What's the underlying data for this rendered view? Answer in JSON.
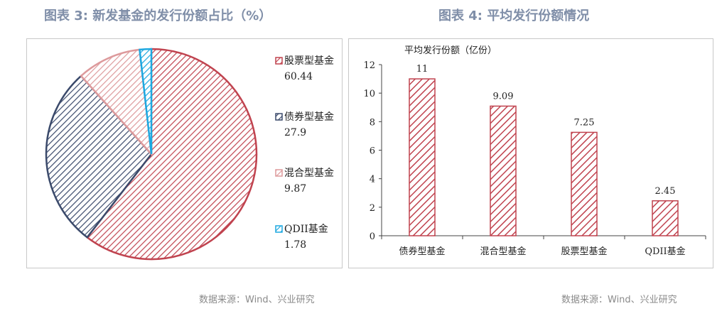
{
  "left": {
    "title": "图表 3:  新发基金的发行份额占比（%）",
    "source": "数据来源：Wind、兴业研究",
    "chart_data": {
      "type": "pie",
      "slices": [
        {
          "label": "股票型基金,60.44",
          "value": 60.44,
          "color": "#c0434f"
        },
        {
          "label": "债券型基金,27.9",
          "value": 27.9,
          "color": "#3b4a6b"
        },
        {
          "label": "混合型基金,9.87",
          "value": 9.87,
          "color": "#dd9a9c"
        },
        {
          "label": "QDII基金,1.78",
          "value": 1.78,
          "color": "#1ea8e0"
        }
      ],
      "legend_position": "right"
    }
  },
  "right": {
    "title": "图表 4:  平均发行份额情况",
    "source": "数据来源：Wind、兴业研究",
    "chart_data": {
      "type": "bar",
      "ylabel": "平均发行份额（亿份）",
      "categories": [
        "债券型基金",
        "混合型基金",
        "股票型基金",
        "QDII基金"
      ],
      "values": [
        11,
        9.09,
        7.25,
        2.45
      ],
      "value_labels": [
        "11",
        "9.09",
        "7.25",
        "2.45"
      ],
      "ylim": [
        0,
        12
      ],
      "yticks": [
        "0",
        "2",
        "4",
        "6",
        "8",
        "10",
        "12"
      ],
      "bar_color": "#c0434f",
      "grid": false
    }
  }
}
